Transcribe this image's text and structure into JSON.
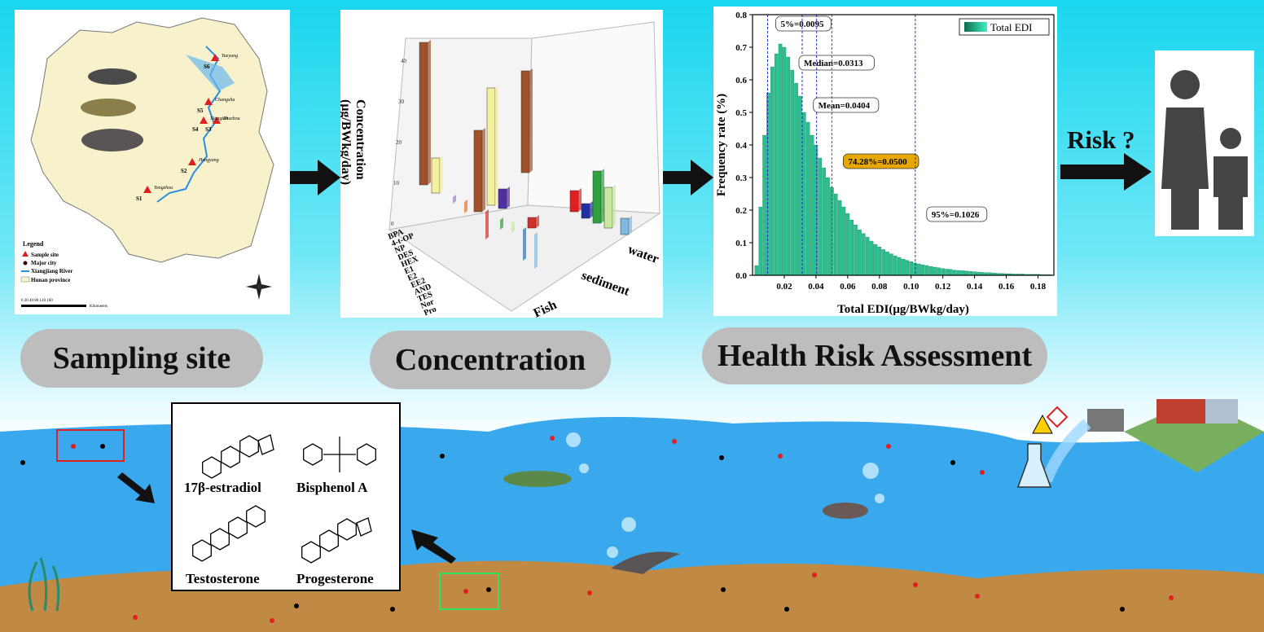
{
  "map": {
    "sites": [
      "S1",
      "S2",
      "S3",
      "S4",
      "S5",
      "S6"
    ],
    "cities": [
      "Yongzhou",
      "Hengyang",
      "Zhuzhou",
      "Xiangtan",
      "Changsha",
      "Yueyang"
    ],
    "legend_title": "Legend",
    "legend_items": [
      "Sample site",
      "Major city",
      "Xiangjiang River",
      "Hunan province"
    ],
    "scale_label": "0  20 40    80    120    160",
    "scale_unit": "Kilometers"
  },
  "labels": {
    "sampling": "Sampling site",
    "concentration": "Concentration",
    "health": "Health Risk Assessment",
    "risk": "Risk ?"
  },
  "bar3d": {
    "ylabel_1": "Concentration",
    "ylabel_2": "(μg/BWkg/day)",
    "compounds": [
      "BPA",
      "4-t-OP",
      "NP",
      "DES",
      "HEX",
      "E1",
      "E2",
      "EE2",
      "AND",
      "TES",
      "Nor",
      "Pro"
    ],
    "media": [
      "Fish",
      "sediment",
      "water"
    ],
    "ticks": [
      "0",
      "10",
      "20",
      "30",
      "40"
    ]
  },
  "chart_data": {
    "type": "bar",
    "title": "",
    "xlabel": "Total EDI(μg/BWkg/day)",
    "ylabel": "Frequency rate (%)",
    "xlim": [
      0,
      0.19
    ],
    "ylim": [
      0,
      0.8
    ],
    "xticks": [
      "0.02",
      "0.04",
      "0.06",
      "0.08",
      "0.10",
      "0.12",
      "0.14",
      "0.16",
      "0.18"
    ],
    "yticks": [
      "0.0",
      "0.1",
      "0.2",
      "0.3",
      "0.4",
      "0.5",
      "0.6",
      "0.7",
      "0.8"
    ],
    "legend": "Total EDI",
    "legend_position": "top-right",
    "bin_width": 0.0025,
    "bin_start": 0.0025,
    "values": [
      0.03,
      0.21,
      0.43,
      0.56,
      0.64,
      0.68,
      0.71,
      0.7,
      0.67,
      0.63,
      0.59,
      0.55,
      0.5,
      0.47,
      0.43,
      0.4,
      0.36,
      0.33,
      0.3,
      0.27,
      0.25,
      0.23,
      0.21,
      0.19,
      0.17,
      0.155,
      0.14,
      0.128,
      0.117,
      0.105,
      0.095,
      0.087,
      0.079,
      0.072,
      0.066,
      0.06,
      0.055,
      0.05,
      0.046,
      0.042,
      0.038,
      0.035,
      0.032,
      0.03,
      0.027,
      0.025,
      0.023,
      0.021,
      0.019,
      0.018,
      0.016,
      0.015,
      0.014,
      0.013,
      0.012,
      0.011,
      0.01,
      0.009,
      0.008,
      0.008,
      0.007,
      0.006,
      0.006,
      0.005,
      0.005,
      0.004,
      0.004,
      0.004,
      0.003,
      0.003,
      0.003,
      0.003,
      0.002,
      0.002,
      0.002
    ],
    "markers": [
      {
        "x": 0.0095,
        "label": "5%=0.0095",
        "color": "#2233cc"
      },
      {
        "x": 0.0313,
        "label": "Median=0.0313",
        "color": "#2233cc"
      },
      {
        "x": 0.0404,
        "label": "Mean=0.0404",
        "color": "#2233cc"
      },
      {
        "x": 0.05,
        "label": "74.28%=0.0500",
        "color": "#d02020"
      },
      {
        "x": 0.1026,
        "label": "95%=0.1026",
        "color": "#2233cc"
      }
    ],
    "bar_color": "#2bbf8f"
  },
  "molecules": [
    "17β-estradiol",
    "Bisphenol A",
    "Testosterone",
    "Progesterone"
  ],
  "colors": {
    "water": "#3aa8ec",
    "sediment": "#c08a45",
    "pill": "#bdbdbd"
  }
}
